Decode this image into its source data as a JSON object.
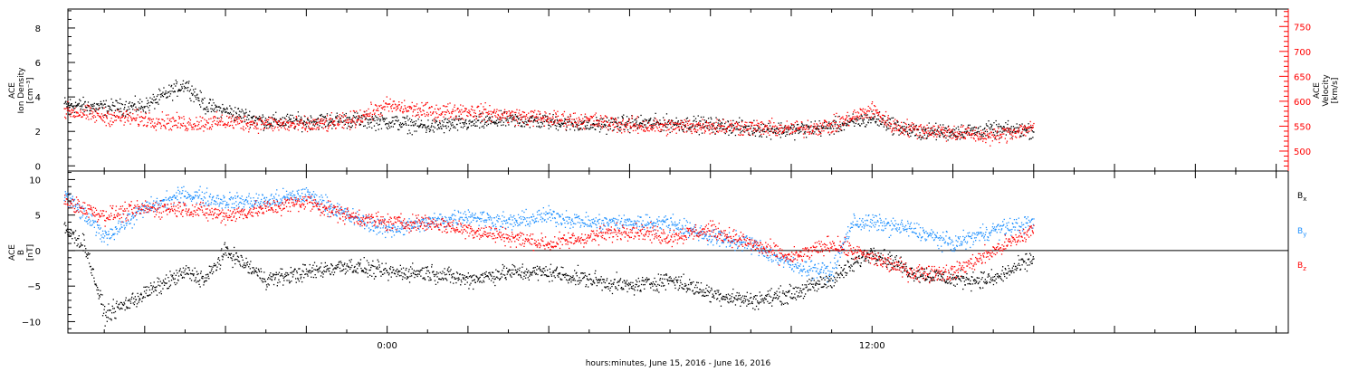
{
  "chart_data": [
    {
      "type": "scatter",
      "panel": "top",
      "ylabel_left": [
        "ACE",
        "Ion Density",
        "[cm⁻³]"
      ],
      "ylabel_right": [
        "ACE",
        "Velocity",
        "[km/s]"
      ],
      "left_ticks": [
        "0",
        "2",
        "4",
        "6",
        "8"
      ],
      "right_ticks": [
        "500",
        "550",
        "600",
        "650",
        "700",
        "750"
      ],
      "ylim_left": [
        -0.3,
        9.1
      ],
      "ylim_right": [
        460,
        785
      ],
      "colors": {
        "density": "#000000",
        "velocity": "#ff0000"
      },
      "series": [
        {
          "axis": "left",
          "x": [
            -8,
            -7,
            -6,
            -5,
            -4.5,
            -4,
            -3,
            -2,
            -1,
            0,
            1,
            2,
            3,
            4,
            5,
            6,
            7,
            8,
            9,
            10,
            11,
            12,
            13,
            14,
            15,
            16
          ],
          "values": [
            3.6,
            3.4,
            3.5,
            4.8,
            3.5,
            3.2,
            2.6,
            2.6,
            2.7,
            2.6,
            2.3,
            2.5,
            2.7,
            2.6,
            2.4,
            2.5,
            2.5,
            2.4,
            2.2,
            2.1,
            2.3,
            2.8,
            2.0,
            2.0,
            2.1,
            2.1
          ],
          "spread": 0.7
        },
        {
          "axis": "right",
          "x": [
            -8,
            -7,
            -6,
            -5,
            -4,
            -3,
            -2,
            -1,
            0,
            1,
            2,
            3,
            4,
            5,
            6,
            7,
            8,
            9,
            10,
            11,
            12,
            12.5,
            13,
            14,
            15,
            16
          ],
          "values": [
            582,
            570,
            565,
            556,
            560,
            556,
            552,
            560,
            592,
            580,
            582,
            572,
            566,
            562,
            552,
            550,
            552,
            548,
            545,
            552,
            584,
            552,
            545,
            538,
            530,
            550
          ],
          "spread": 25
        }
      ]
    },
    {
      "type": "scatter",
      "panel": "bottom",
      "ylabel_left": [
        "ACE",
        "B",
        "[nT]"
      ],
      "left_ticks": [
        "−10",
        "−5",
        "0",
        "5",
        "10"
      ],
      "ylim": [
        -11.6,
        11.2
      ],
      "zero_line": true,
      "series": [
        {
          "name": "Bx",
          "legend": [
            "B",
            "x"
          ],
          "color": "#000000",
          "x": [
            -8,
            -7.5,
            -7,
            -6,
            -5,
            -4.5,
            -4,
            -3,
            -2,
            -1,
            0,
            1,
            2,
            3,
            4,
            5,
            6,
            7,
            8,
            9,
            10,
            11,
            12,
            13,
            14,
            15,
            16
          ],
          "values": [
            3,
            1,
            -9,
            -6,
            -3,
            -4,
            0,
            -4,
            -3,
            -2,
            -3,
            -3,
            -4,
            -3,
            -3,
            -4,
            -5,
            -4,
            -6,
            -7,
            -6,
            -4,
            0,
            -3,
            -4,
            -4,
            -1
          ]
        },
        {
          "name": "By",
          "legend": [
            "B",
            "y"
          ],
          "color": "#1e90ff",
          "x": [
            -8,
            -7.5,
            -7,
            -6,
            -5,
            -4,
            -3,
            -2,
            -1,
            0,
            1,
            2,
            3,
            4,
            5,
            6,
            7,
            8,
            9,
            10,
            11,
            11.5,
            12,
            13,
            14,
            15,
            16
          ],
          "values": [
            8,
            5,
            2,
            6,
            8,
            7,
            7,
            8,
            5,
            3,
            4,
            5,
            4,
            5,
            4,
            4,
            4,
            2,
            1,
            -2,
            -3,
            4,
            4,
            3,
            1,
            3,
            4
          ]
        },
        {
          "name": "Bz",
          "legend": [
            "B",
            "z"
          ],
          "color": "#ff0000",
          "x": [
            -8,
            -7,
            -6,
            -5,
            -4,
            -3,
            -2,
            -1,
            0,
            1,
            2,
            3,
            4,
            5,
            6,
            7,
            8,
            9,
            10,
            11,
            12,
            13,
            14,
            15,
            16
          ],
          "values": [
            7,
            5,
            6,
            6,
            5,
            6,
            7,
            5,
            4,
            4,
            3,
            2,
            1,
            2,
            3,
            2,
            3,
            1,
            -1,
            1,
            -1,
            -3,
            -3,
            0,
            3
          ]
        }
      ]
    }
  ],
  "x_axis": {
    "label": "hours:minutes, June 15, 2016 - June 16, 2016",
    "range_hours": [
      -7.9,
      22.3
    ],
    "tick_labels": [
      {
        "hour": 0,
        "label": "0:00"
      },
      {
        "hour": 12,
        "label": "12:00"
      }
    ]
  }
}
